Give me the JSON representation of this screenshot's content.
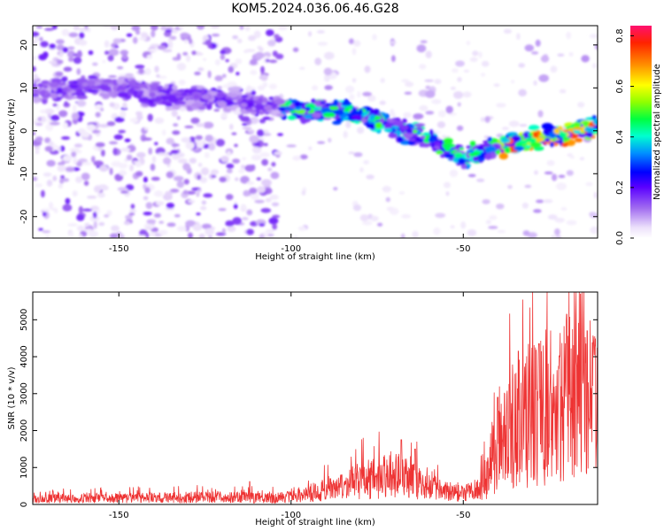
{
  "title": "KOM5.2024.036.06.46.G28",
  "colors": {
    "trace": "#ee3333",
    "axis": "#000000"
  },
  "chart_data": [
    {
      "type": "heatmap",
      "title": "KOM5.2024.036.06.46.G28",
      "xlabel": "Height of straight line (km)",
      "ylabel": "Frequency (Hz)",
      "xlim": [
        -175,
        -11
      ],
      "ylim": [
        -25,
        24.5
      ],
      "x_ticks": [
        -150,
        -100,
        -50
      ],
      "x_tick_labels": [
        "-150",
        "-100",
        "-50"
      ],
      "y_ticks": [
        20,
        10,
        0,
        -10,
        -20
      ],
      "y_tick_labels": [
        "20",
        "10",
        "0",
        "-10",
        "-20"
      ],
      "grid": false,
      "ridge": {
        "x": [
          -175,
          -160,
          -150,
          -140,
          -130,
          -120,
          -110,
          -100,
          -90,
          -80,
          -70,
          -60,
          -50,
          -40,
          -30,
          -20,
          -11
        ],
        "y": [
          9,
          10,
          10.5,
          8.5,
          8,
          8,
          6,
          5,
          5,
          4,
          1,
          -2,
          -6,
          -4,
          -2,
          -1,
          1
        ]
      },
      "colorbar": {
        "label": "Normalized spectral amplitude",
        "range": [
          0,
          0.84
        ],
        "ticks": [
          0.0,
          0.2,
          0.4,
          0.6,
          0.8
        ],
        "tick_labels": [
          "0.0",
          "0.2",
          "0.4",
          "0.6",
          "0.8"
        ]
      }
    },
    {
      "type": "line",
      "xlabel": "Height of straight line (km)",
      "ylabel": "SNR (10 * v/v)",
      "xlim": [
        -175,
        -11
      ],
      "ylim": [
        0,
        5750
      ],
      "x_ticks": [
        -150,
        -100,
        -50
      ],
      "x_tick_labels": [
        "-150",
        "-100",
        "-50"
      ],
      "y_ticks": [
        0,
        1000,
        2000,
        3000,
        4000,
        5000
      ],
      "y_tick_labels": [
        "0",
        "1000",
        "2000",
        "3000",
        "4000",
        "5000"
      ],
      "grid": false,
      "envelope": {
        "x": [
          -175,
          -140,
          -120,
          -105,
          -100,
          -95,
          -90,
          -85,
          -80,
          -75,
          -70,
          -65,
          -60,
          -55,
          -50,
          -45,
          -42,
          -40,
          -37,
          -34,
          -31,
          -28,
          -25,
          -22,
          -19,
          -16,
          -13,
          -11
        ],
        "y": [
          200,
          230,
          260,
          220,
          280,
          350,
          500,
          600,
          850,
          900,
          1100,
          850,
          600,
          450,
          350,
          600,
          1200,
          1800,
          2400,
          2700,
          3000,
          3200,
          3500,
          3300,
          3700,
          3900,
          3600,
          3400
        ]
      },
      "peaks": [
        {
          "x": -112,
          "y": 620
        },
        {
          "x": -68,
          "y": 1750
        },
        {
          "x": -64,
          "y": 1500
        },
        {
          "x": -40,
          "y": 2900
        },
        {
          "x": -34,
          "y": 4150
        },
        {
          "x": -28,
          "y": 4350
        },
        {
          "x": -22,
          "y": 4000
        },
        {
          "x": -20,
          "y": 5150
        },
        {
          "x": -16,
          "y": 5700
        },
        {
          "x": -14,
          "y": 4700
        },
        {
          "x": -12,
          "y": 4050
        }
      ]
    }
  ]
}
